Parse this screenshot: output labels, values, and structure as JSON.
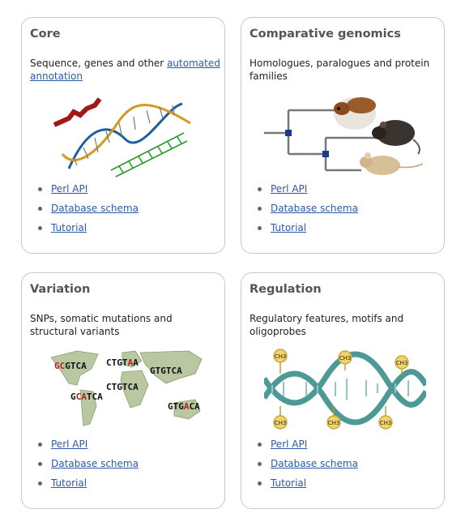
{
  "cards": [
    {
      "title": "Core",
      "desc_text": "Sequence, genes and other ",
      "desc_link": "automated annotation",
      "links": [
        "Perl API",
        "Database schema",
        "Tutorial"
      ]
    },
    {
      "title": "Comparative genomics",
      "desc_text": "Homologues, paralogues and protein families",
      "links": [
        "Perl API",
        "Database schema",
        "Tutorial"
      ]
    },
    {
      "title": "Variation",
      "desc_text": "SNPs, somatic mutations and structural variants",
      "links": [
        "Perl API",
        "Database schema",
        "Tutorial"
      ]
    },
    {
      "title": "Regulation",
      "desc_text": "Regulatory features, motifs and oligoprobes",
      "links": [
        "Perl API",
        "Database schema",
        "Tutorial"
      ]
    }
  ],
  "variation_sequences": [
    {
      "pre": "G",
      "mid": "C",
      "post": "GTCA"
    },
    {
      "pre": "CTGT",
      "mid": "A",
      "post": "A"
    },
    {
      "pre": "GTGTCA",
      "mid": "",
      "post": ""
    },
    {
      "pre": "CTGTCA",
      "mid": "",
      "post": ""
    },
    {
      "pre": "G",
      "mid": "CA",
      "post": "TCA"
    },
    {
      "pre": "GTG",
      "mid": "A",
      "post": "CA"
    }
  ],
  "methyl_label": "CH3",
  "colors": {
    "link": "#2b5aa8",
    "title": "#555555",
    "border": "#c8c8c8",
    "snp": "#b22222",
    "dna": "#3a8f8a"
  }
}
